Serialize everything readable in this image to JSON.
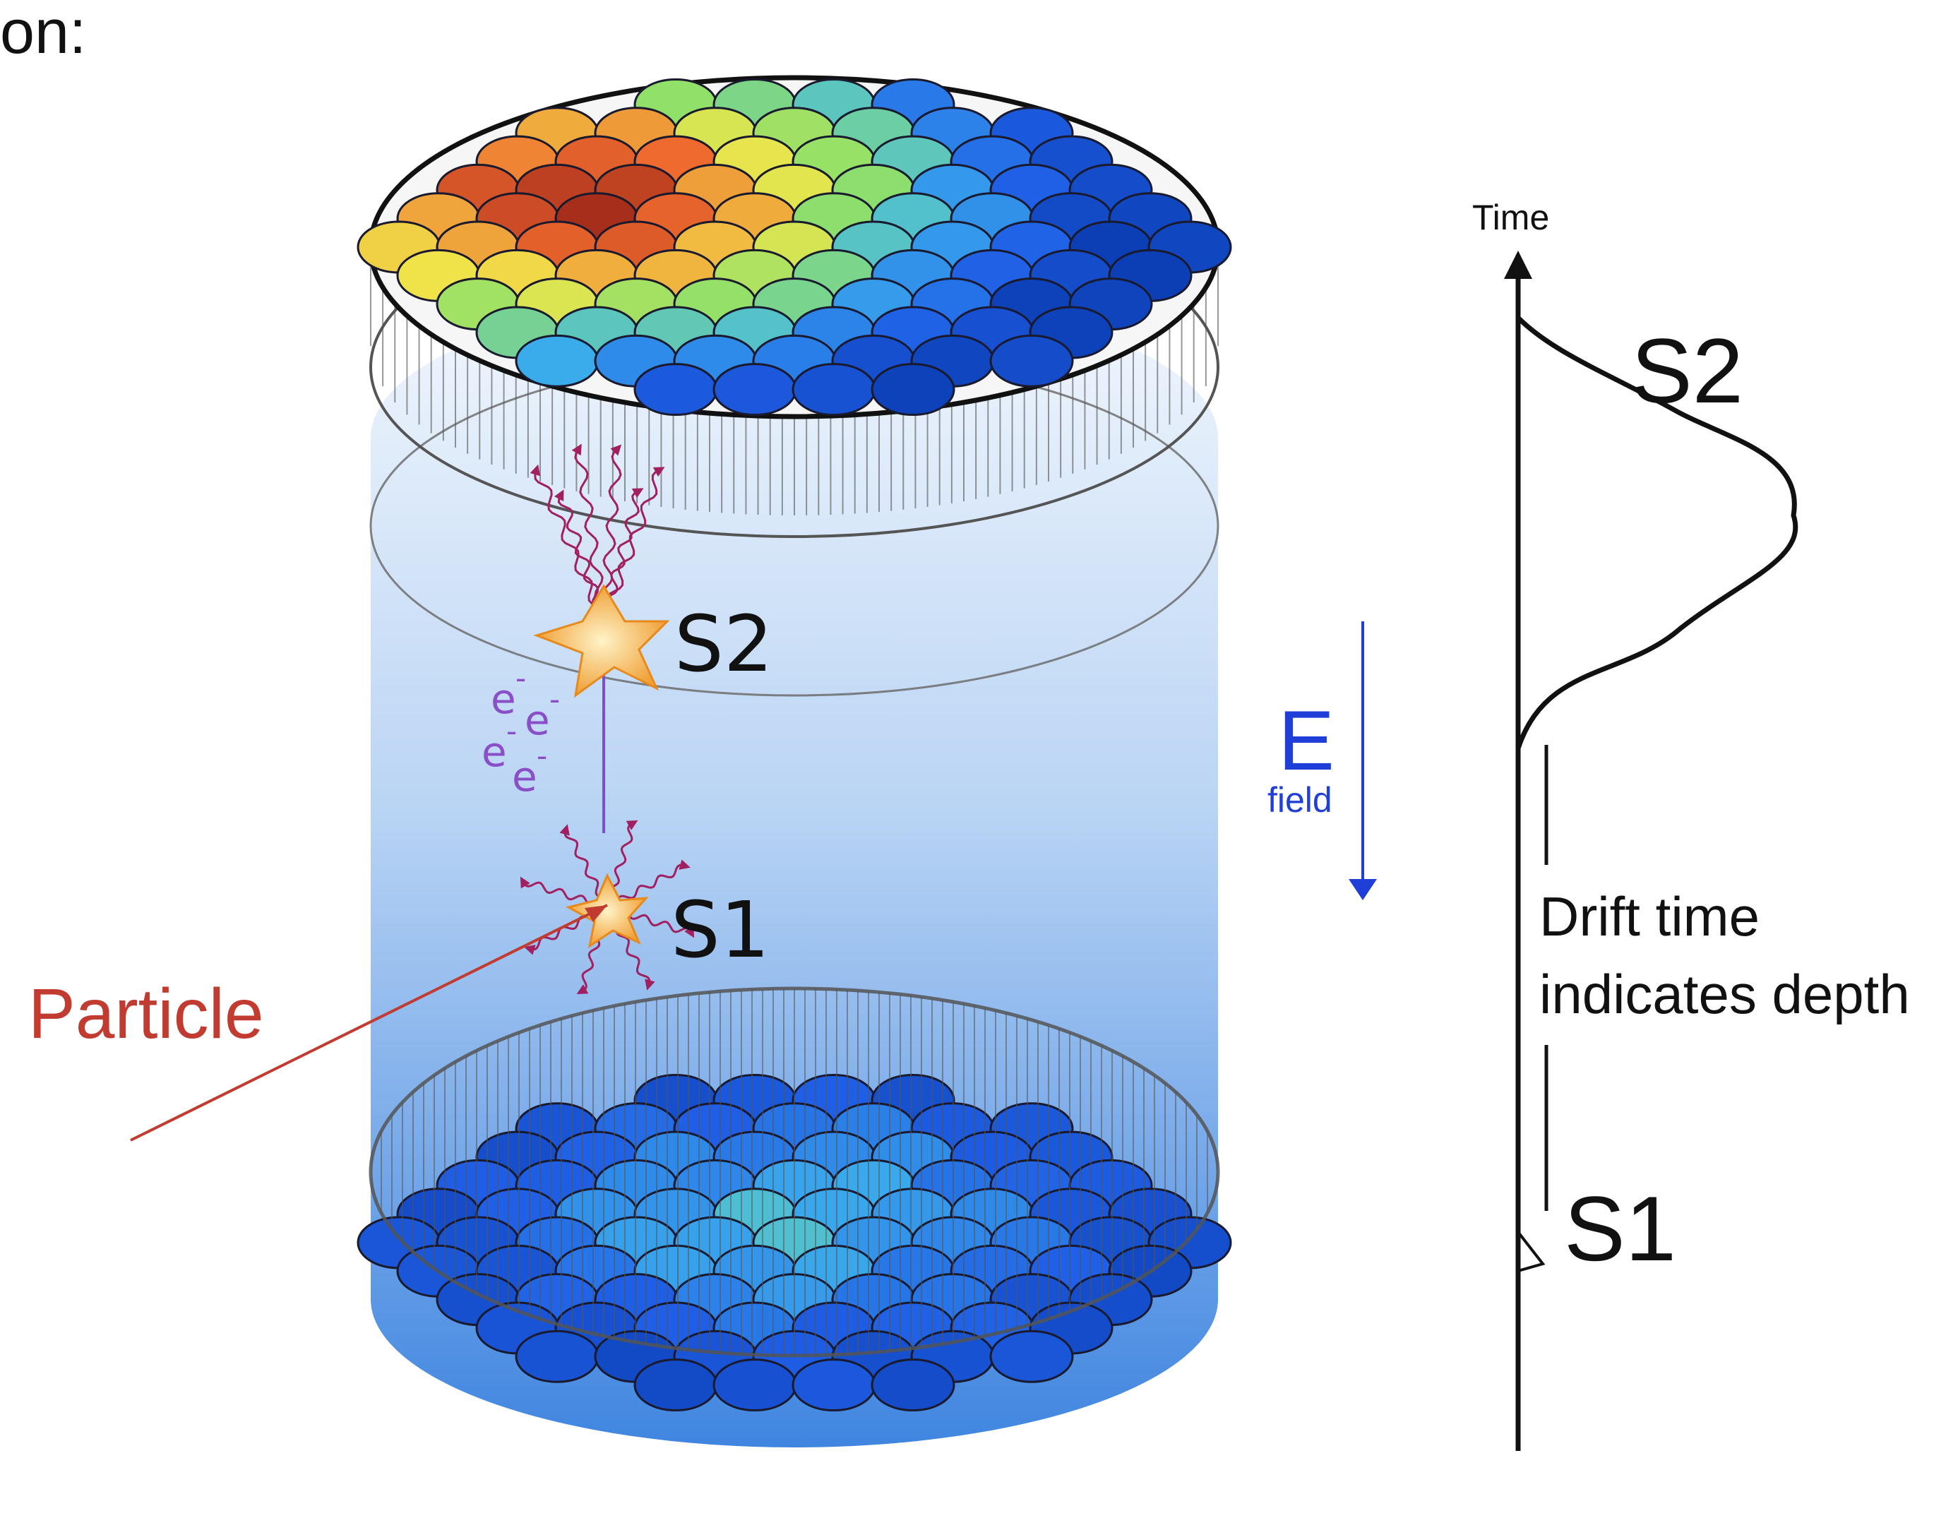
{
  "heading": {
    "fragment": "on:"
  },
  "detector": {
    "particle_label": "Particle",
    "s1_label": "S1",
    "s2_label": "S2",
    "electron_label": "e",
    "electron_charge": "-"
  },
  "efield": {
    "symbol": "E",
    "sublabel": "field"
  },
  "waveform": {
    "axis_label": "Time",
    "s2_label": "S2",
    "s1_label": "S1",
    "drift_line1": "Drift time",
    "drift_line2": "indicates depth"
  },
  "colors": {
    "background": "#ffffff",
    "particle": "#c23b30",
    "electrons": "#8a4fc8",
    "efield": "#1f3fd8",
    "cylinder_top": "#e8f1fb",
    "cylinder_bottom": "#4f8fe0",
    "spark": "#f0a23a",
    "photon": "#a02060"
  }
}
